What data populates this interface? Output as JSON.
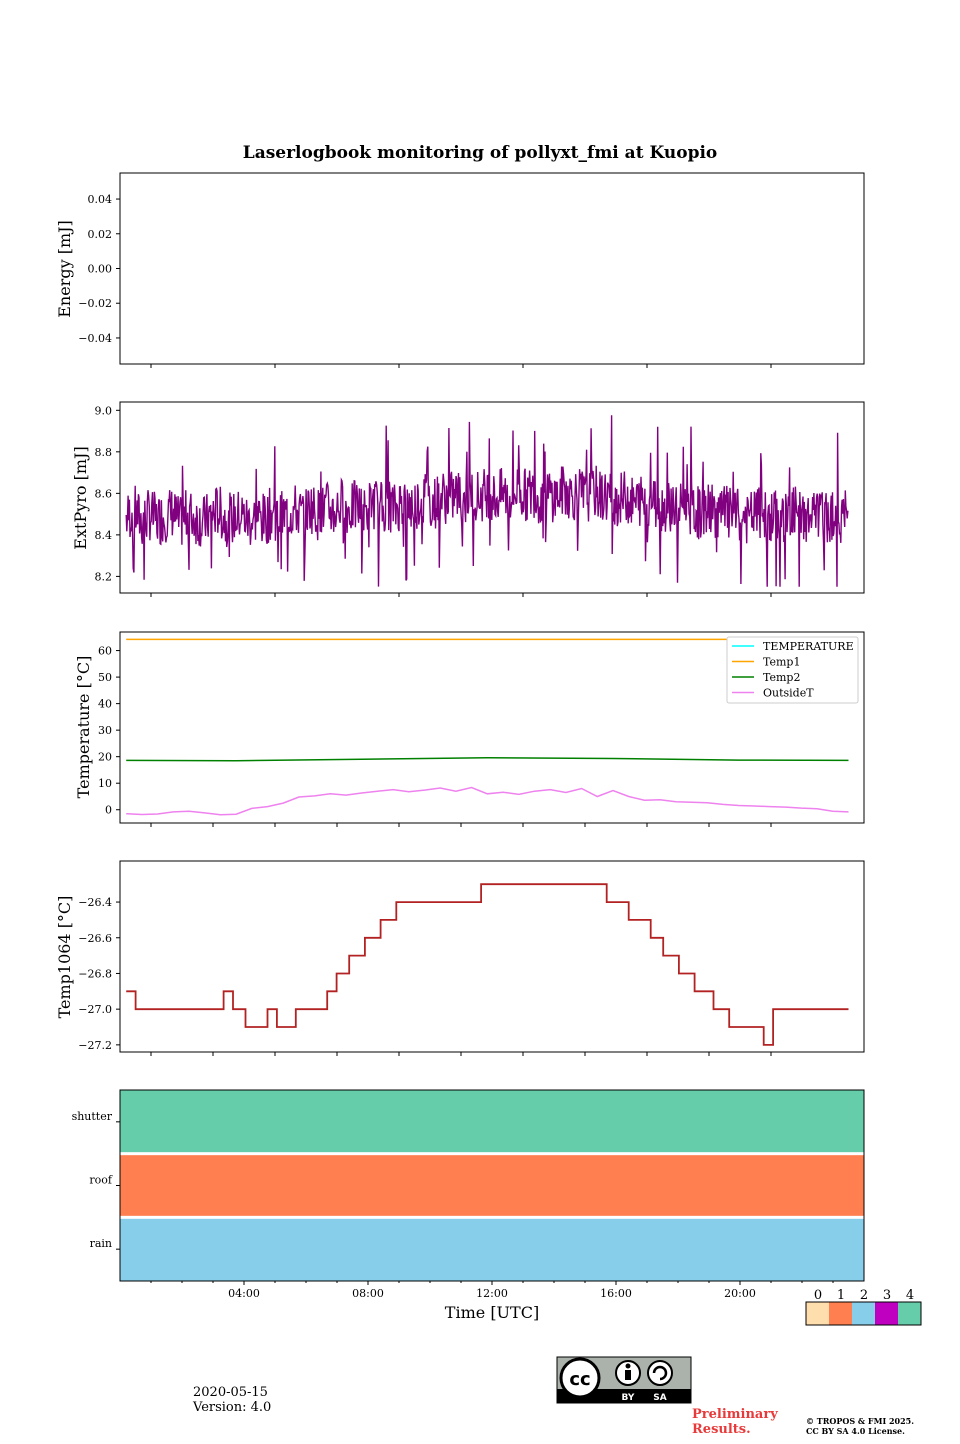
{
  "title": "Laserlogbook monitoring of pollyxt_fmi at Kuopio",
  "date": "2020-05-15",
  "version": "Version: 4.0",
  "preliminary": [
    "Preliminary",
    "Results."
  ],
  "copyright": [
    "© TROPOS & FMI 2025.",
    "CC BY SA 4.0 License."
  ],
  "license_badge": {
    "cc": "cc",
    "by": "BY",
    "sa": "SA"
  },
  "colors": {
    "purple": "#800080",
    "orange": "#ffa500",
    "green": "#008000",
    "violet": "#ee82ee",
    "cyan": "#00ffff",
    "firebrick": "#b22222",
    "shutter": "#66cdaa",
    "roof": "#ff7f50",
    "rain": "#87ceeb"
  },
  "chart_data": [
    {
      "id": "energy",
      "type": "line",
      "ylabel": "Energy [mJ]",
      "ylim": [
        -0.055,
        0.055
      ],
      "yticks": [
        0.04,
        0.02,
        0.0,
        -0.02,
        -0.04
      ],
      "ytick_labels": [
        "0.04",
        "0.02",
        "0.00",
        "−0.02",
        "−0.04"
      ],
      "series": []
    },
    {
      "id": "extpyro",
      "type": "line",
      "ylabel": "ExtPyro [mJ]",
      "ylim": [
        8.12,
        9.04
      ],
      "yticks": [
        9.0,
        8.8,
        8.6,
        8.4,
        8.2
      ],
      "ytick_labels": [
        "9.0",
        "8.8",
        "8.6",
        "8.4",
        "8.2"
      ],
      "xlim": [
        0,
        24
      ],
      "series": [
        {
          "name": "ExtPyro",
          "color": "#800080",
          "x": [
            0.5,
            0.75,
            1,
            1.25,
            1.5,
            1.75,
            2,
            2.25,
            2.5,
            2.75,
            3,
            3.25,
            3.5,
            3.75,
            4,
            4.25,
            4.5,
            4.75,
            5,
            5.25,
            5.5,
            5.75,
            6,
            6.25,
            6.5,
            6.75,
            7,
            7.25,
            7.5,
            7.75,
            8,
            8.25,
            8.5,
            8.75,
            9,
            9.25,
            9.5,
            9.75,
            10,
            10.25,
            10.5,
            10.75,
            11,
            11.25,
            11.5,
            11.75,
            12,
            12.25,
            12.5,
            12.75,
            13,
            13.25,
            13.5,
            13.75,
            14,
            14.25,
            14.5,
            14.75,
            15,
            15.25,
            15.5,
            15.75,
            16,
            16.25,
            16.5,
            16.75,
            17,
            17.25,
            17.5,
            17.75,
            18,
            18.25,
            18.5,
            18.75,
            19,
            19.25,
            19.5,
            19.75,
            20,
            20.25,
            20.5,
            20.75,
            21,
            21.25,
            21.5,
            21.75,
            22,
            22.25,
            22.5,
            22.75,
            23,
            23.25,
            23.5,
            23.75,
            24
          ],
          "y": [
            8.48,
            8.52,
            8.46,
            8.5,
            8.47,
            8.49,
            8.51,
            8.45,
            8.5,
            8.48,
            8.46,
            8.49,
            8.52,
            8.47,
            8.48,
            8.5,
            8.46,
            8.49,
            8.47,
            8.51,
            8.48,
            8.5,
            8.52,
            8.49,
            8.54,
            8.5,
            8.53,
            8.51,
            8.55,
            8.52,
            8.54,
            8.5,
            8.56,
            8.53,
            8.55,
            8.52,
            8.57,
            8.54,
            8.56,
            8.58,
            8.55,
            8.59,
            8.57,
            8.6,
            8.56,
            8.62,
            8.58,
            8.61,
            8.57,
            8.6,
            8.58,
            8.62,
            8.59,
            8.61,
            8.57,
            8.6,
            8.58,
            8.62,
            8.59,
            8.6,
            8.57,
            8.61,
            8.58,
            8.6,
            8.56,
            8.59,
            8.55,
            8.57,
            8.54,
            8.56,
            8.53,
            8.55,
            8.52,
            8.54,
            8.51,
            8.5,
            8.53,
            8.49,
            8.52,
            8.48,
            8.5,
            8.47,
            8.51,
            8.49,
            8.48,
            8.5,
            8.47,
            8.52,
            8.49,
            8.48,
            8.5,
            8.47,
            8.51,
            8.49,
            8.5
          ]
        }
      ]
    },
    {
      "id": "temperature",
      "type": "line",
      "ylabel": "Temperature [°C]",
      "ylim": [
        -5,
        67
      ],
      "yticks": [
        60,
        50,
        40,
        30,
        20,
        10,
        0
      ],
      "ytick_labels": [
        "60",
        "50",
        "40",
        "30",
        "20",
        "10",
        "0"
      ],
      "legend": "top-right",
      "series": [
        {
          "name": "TEMPERATURE",
          "color": "#00ffff",
          "x": [],
          "y": []
        },
        {
          "name": "Temp1",
          "color": "#ffa500",
          "x": [
            0.5,
            23.5
          ],
          "y": [
            64.2,
            64.2
          ]
        },
        {
          "name": "Temp2",
          "color": "#008000",
          "x": [
            0.5,
            4,
            8,
            12,
            16,
            20,
            23.5
          ],
          "y": [
            18.6,
            18.5,
            19.0,
            19.6,
            19.3,
            18.7,
            18.6
          ]
        },
        {
          "name": "OutsideT",
          "color": "#ee82ee",
          "x": [
            0.5,
            1,
            1.5,
            2,
            2.5,
            3,
            3.5,
            4,
            4.5,
            5,
            5.5,
            6,
            6.5,
            7,
            7.5,
            8,
            8.5,
            9,
            9.5,
            10,
            10.5,
            11,
            11.5,
            12,
            12.5,
            13,
            13.5,
            14,
            14.5,
            15,
            15.5,
            16,
            16.5,
            17,
            17.5,
            18,
            18.5,
            19,
            19.5,
            20,
            20.5,
            21,
            21.5,
            22,
            22.5,
            23,
            23.5
          ],
          "y": [
            -1.5,
            -1.8,
            -1.6,
            -0.8,
            -0.6,
            -1.2,
            -1.9,
            -1.7,
            0.5,
            1.2,
            2.5,
            4.8,
            5.2,
            6.0,
            5.5,
            6.3,
            7.0,
            7.6,
            6.8,
            7.4,
            8.2,
            7.0,
            8.4,
            6.0,
            6.6,
            5.8,
            7.0,
            7.6,
            6.5,
            8.0,
            5.0,
            7.2,
            5.0,
            3.6,
            3.8,
            3.0,
            2.8,
            2.6,
            2.0,
            1.6,
            1.4,
            1.2,
            1.0,
            0.6,
            0.4,
            -0.6,
            -0.8
          ]
        }
      ]
    },
    {
      "id": "temp1064",
      "type": "line",
      "ylabel": "Temp1064 [°C]",
      "ylim": [
        -27.24,
        -26.17
      ],
      "yticks": [
        -26.4,
        -26.6,
        -26.8,
        -27.0,
        -27.2
      ],
      "ytick_labels": [
        "−26.4",
        "−26.6",
        "−26.8",
        "−27.0",
        "−27.2"
      ],
      "series": [
        {
          "name": "Temp1064",
          "color": "#b22222",
          "x": [
            0.5,
            0.8,
            0.8,
            1.0,
            1.0,
            3.6,
            3.6,
            3.9,
            3.9,
            4.3,
            4.3,
            5.0,
            5.0,
            5.3,
            5.3,
            5.9,
            5.9,
            6.9,
            6.9,
            7.2,
            7.2,
            7.6,
            7.6,
            8.1,
            8.1,
            8.6,
            8.6,
            9.1,
            9.1,
            9.6,
            9.6,
            10.2,
            10.2,
            11.8,
            11.8,
            15.8,
            15.8,
            16.5,
            16.5,
            17.2,
            17.2,
            17.6,
            17.6,
            18.1,
            18.1,
            18.6,
            18.6,
            19.2,
            19.2,
            19.7,
            19.7,
            20.8,
            20.8,
            21.1,
            21.1,
            21.9,
            21.9,
            23.5
          ],
          "y": [
            -26.9,
            -26.9,
            -27.0,
            -27.0,
            -27.0,
            -27.0,
            -26.9,
            -26.9,
            -27.0,
            -27.0,
            -27.1,
            -27.1,
            -27.0,
            -27.0,
            -27.1,
            -27.1,
            -27.0,
            -27.0,
            -26.9,
            -26.9,
            -26.8,
            -26.8,
            -26.7,
            -26.7,
            -26.6,
            -26.6,
            -26.5,
            -26.5,
            -26.4,
            -26.4,
            -26.4,
            -26.4,
            -26.4,
            -26.4,
            -26.3,
            -26.3,
            -26.4,
            -26.4,
            -26.5,
            -26.5,
            -26.6,
            -26.6,
            -26.7,
            -26.7,
            -26.8,
            -26.8,
            -26.9,
            -26.9,
            -27.0,
            -27.0,
            -27.1,
            -27.1,
            -27.2,
            -27.2,
            -27.0,
            -27.0,
            -27.0,
            -27.0
          ]
        }
      ]
    },
    {
      "id": "status",
      "type": "heatmap",
      "rows": [
        "shutter",
        "roof",
        "rain"
      ],
      "row_values": [
        4,
        1,
        2
      ],
      "xlabel": "Time [UTC]",
      "xticks": [
        "04:00",
        "08:00",
        "12:00",
        "16:00",
        "20:00"
      ],
      "xtick_hours": [
        4,
        8,
        12,
        16,
        20
      ],
      "xlim": [
        0,
        24
      ],
      "colorbar": {
        "labels": [
          "0",
          "1",
          "2",
          "3",
          "4"
        ],
        "colors": [
          "#ffdead",
          "#ff7f50",
          "#87ceeb",
          "#c000c0",
          "#66cdaa"
        ]
      }
    }
  ]
}
